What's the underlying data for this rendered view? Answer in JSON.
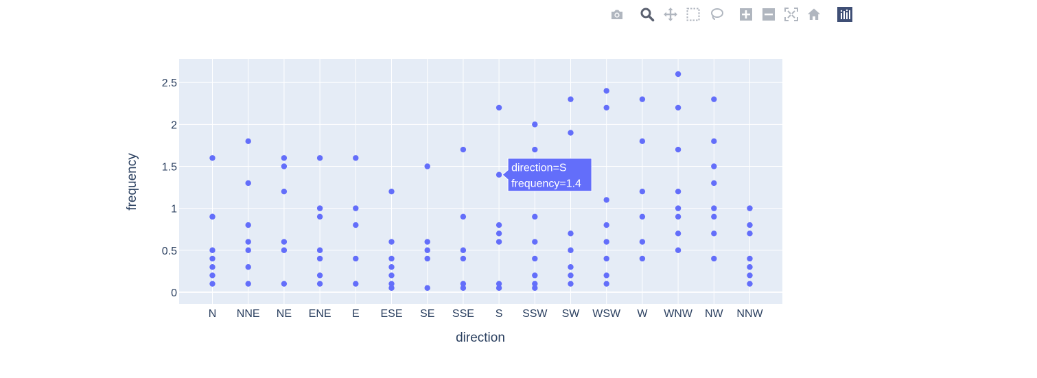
{
  "modebar": {
    "buttons": [
      {
        "name": "camera-icon"
      },
      {
        "name": "zoom-icon"
      },
      {
        "name": "pan-icon"
      },
      {
        "name": "box-select-icon"
      },
      {
        "name": "lasso-select-icon"
      },
      {
        "name": "zoom-in-icon"
      },
      {
        "name": "zoom-out-icon"
      },
      {
        "name": "autoscale-icon"
      },
      {
        "name": "reset-axes-icon"
      },
      {
        "name": "plotly-logo-icon"
      }
    ],
    "icon_color": "#b0b6bf",
    "active_color": "#5b6170",
    "logo_color": "#3f4f75"
  },
  "colors": {
    "plot_bg": "#e5ecf6",
    "grid": "#ffffff",
    "marker": "#636efa",
    "text": "#2a3f5f"
  },
  "chart_data": {
    "type": "scatter",
    "xlabel": "direction",
    "ylabel": "frequency",
    "categories": [
      "N",
      "NNE",
      "NE",
      "ENE",
      "E",
      "ESE",
      "SE",
      "SSE",
      "S",
      "SSW",
      "SW",
      "WSW",
      "W",
      "WNW",
      "NW",
      "NNW"
    ],
    "ylim": [
      -0.14,
      2.78
    ],
    "yticks": [
      0,
      0.5,
      1,
      1.5,
      2,
      2.5
    ],
    "ytick_labels": [
      "0",
      "0.5",
      "1",
      "1.5",
      "2",
      "2.5"
    ],
    "grid": true,
    "points": [
      {
        "x": "N",
        "y": [
          0.1,
          0.2,
          0.3,
          0.4,
          0.5,
          0.9,
          0.9,
          1.6
        ]
      },
      {
        "x": "NNE",
        "y": [
          0.1,
          0.3,
          0.5,
          0.6,
          0.8,
          1.3,
          1.8
        ]
      },
      {
        "x": "NE",
        "y": [
          0.1,
          0.5,
          0.6,
          1.2,
          1.5,
          1.6
        ]
      },
      {
        "x": "ENE",
        "y": [
          0.1,
          0.2,
          0.4,
          0.5,
          0.9,
          1.0,
          1.6
        ]
      },
      {
        "x": "E",
        "y": [
          0.1,
          0.4,
          0.8,
          1.0,
          1.6
        ]
      },
      {
        "x": "ESE",
        "y": [
          0.05,
          0.1,
          0.2,
          0.3,
          0.4,
          0.6,
          1.2
        ]
      },
      {
        "x": "SE",
        "y": [
          0.05,
          0.4,
          0.5,
          0.6,
          1.5
        ]
      },
      {
        "x": "SSE",
        "y": [
          0.05,
          0.1,
          0.4,
          0.5,
          0.9,
          1.7
        ]
      },
      {
        "x": "S",
        "y": [
          0.05,
          0.1,
          0.6,
          0.7,
          0.8,
          1.4,
          2.2
        ]
      },
      {
        "x": "SSW",
        "y": [
          0.05,
          0.1,
          0.2,
          0.4,
          0.6,
          0.9,
          1.7,
          2.0
        ]
      },
      {
        "x": "SW",
        "y": [
          0.1,
          0.2,
          0.3,
          0.5,
          0.7,
          1.9,
          2.3
        ]
      },
      {
        "x": "WSW",
        "y": [
          0.1,
          0.2,
          0.4,
          0.6,
          0.8,
          1.1,
          2.2,
          2.4
        ]
      },
      {
        "x": "W",
        "y": [
          0.4,
          0.6,
          0.9,
          1.2,
          1.8,
          2.3
        ]
      },
      {
        "x": "WNW",
        "y": [
          0.5,
          0.7,
          0.9,
          1.0,
          1.2,
          1.7,
          2.2,
          2.6
        ]
      },
      {
        "x": "NW",
        "y": [
          0.4,
          0.7,
          0.9,
          1.0,
          1.3,
          1.5,
          1.8,
          2.3
        ]
      },
      {
        "x": "NNW",
        "y": [
          0.1,
          0.2,
          0.3,
          0.4,
          0.7,
          0.8,
          1.0
        ]
      }
    ],
    "hover": {
      "x": "S",
      "y": 1.4,
      "lines": [
        "direction=S",
        "frequency=1.4"
      ]
    }
  }
}
